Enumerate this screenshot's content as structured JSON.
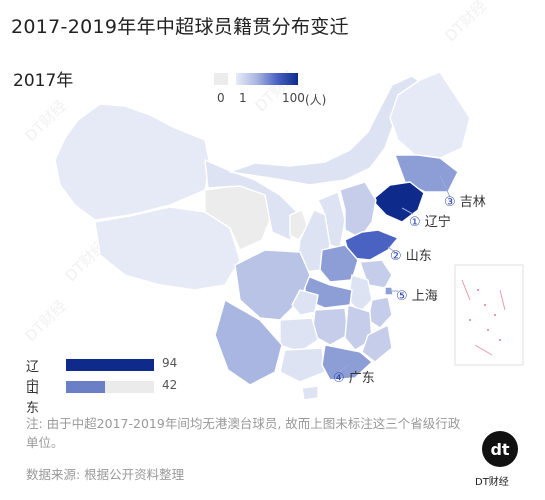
{
  "title": "2017-2019年年中超球员籍贯分布变迁",
  "year": "2017年",
  "legend": {
    "min": "0",
    "mid": "1",
    "max": "100",
    "unit": "(人)"
  },
  "colors": {
    "dark": "#0e2b8c",
    "mid": "#4a62c2",
    "light": "#a9b6e1",
    "pale": "#dde3f3",
    "none": "#ececec"
  },
  "top_regions": [
    {
      "rank": "①",
      "name": "辽宁"
    },
    {
      "rank": "②",
      "name": "山东"
    },
    {
      "rank": "③",
      "name": "吉林"
    },
    {
      "rank": "④",
      "name": "广东"
    },
    {
      "rank": "⑤",
      "name": "上海"
    }
  ],
  "bars": [
    {
      "name": "辽宁",
      "value": 94,
      "color": "#0e2b8c"
    },
    {
      "name": "山东",
      "value": 42,
      "color": "#6b7fc6"
    }
  ],
  "bar_max": 94,
  "note": "注: 由于中超2017-2019年间均无港澳台球员, 故而上图未标注这三个省级行政单位。",
  "source": "数据来源: 根据公开资料整理",
  "logo_text": "DT财经"
}
